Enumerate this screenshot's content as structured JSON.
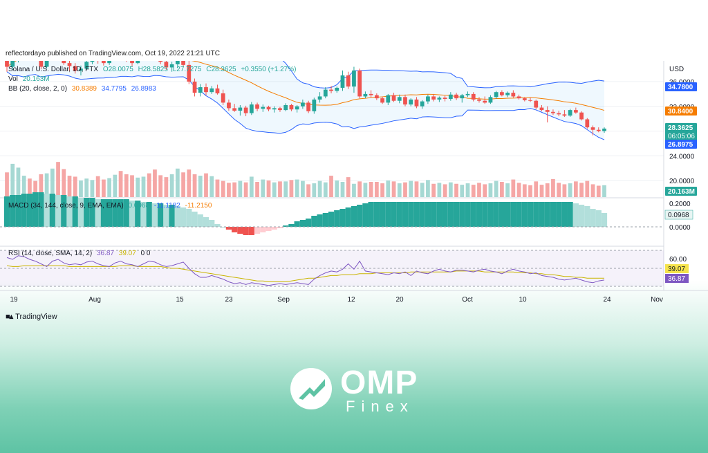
{
  "credit": "reflectordayo published on TradingView.com, Oct 19, 2022 21:21 UTC",
  "header": {
    "symbol": "Solana / U.S. Dollar, 1D, FTX",
    "o": "O28.0075",
    "h": "H28.5825",
    "l": "L27.7275",
    "c": "C28.3625",
    "change": "+0.3550 (+1.27%)",
    "vol_label": "Vol",
    "vol_value": "20.163M",
    "bb_label": "BB (20, close, 2, 0)",
    "bb_basis": "30.8389",
    "bb_upper": "34.7795",
    "bb_lower": "26.8983",
    "macd_label": "MACD (34, 144, close, 9, EMA, EMA)",
    "macd_hist": "0.0968",
    "macd_line": "-11.1182",
    "macd_signal": "-11.2150",
    "rsi_label": "RSI (14, close, SMA, 14, 2)",
    "rsi_value": "36.87",
    "rsi_ma": "39.07",
    "rsi_extra": "0 0"
  },
  "colors": {
    "up": "#26a69a",
    "down": "#ef5350",
    "vol_up": "#a6d8d3",
    "vol_down": "#f5a6a5",
    "bb_band": "#2962ff",
    "bb_basis": "#f57c00",
    "rsi": "#7e57c2",
    "rsi_ma": "#c9b400"
  },
  "brand": {
    "tv": "TradingView",
    "omp": "OMP",
    "omp_sub": "Finex"
  },
  "chart_data": {
    "type": "candlestick",
    "price_axis": {
      "unit": "USD",
      "ticks": [
        "36.0000",
        "32.0000",
        "28.0000",
        "24.0000",
        "20.0000"
      ],
      "range": [
        18.5,
        37.5
      ]
    },
    "price_badges": [
      {
        "value": "34.7800",
        "color": "#2962ff"
      },
      {
        "value": "30.8400",
        "color": "#f57c00"
      },
      {
        "value": "28.3625",
        "sub": "06:05:06",
        "color": "#26a69a"
      },
      {
        "value": "26.8975",
        "color": "#2962ff"
      },
      {
        "value": "20.163M",
        "color": "#26a69a"
      }
    ],
    "macd_axis": {
      "ticks": [
        "0.2000",
        "0.0000"
      ],
      "badge": "0.0968"
    },
    "rsi_axis": {
      "ticks": [
        "60.00"
      ],
      "badges": [
        {
          "value": "39.07",
          "color": "#f5e34b"
        },
        {
          "value": "36.87",
          "color": "#7e57c2"
        }
      ]
    },
    "time_axis": [
      "19",
      "Aug",
      "15",
      "23",
      "Sep",
      "12",
      "20",
      "Oct",
      "10",
      "24",
      "Nov"
    ],
    "candles": [
      {
        "o": 39.4,
        "h": 40.8,
        "l": 37.6,
        "c": 38.4
      },
      {
        "o": 38.4,
        "h": 40.2,
        "l": 37.9,
        "c": 39.7
      },
      {
        "o": 39.7,
        "h": 41.4,
        "l": 39.1,
        "c": 40.6
      },
      {
        "o": 40.6,
        "h": 42.6,
        "l": 40.0,
        "c": 42.0
      },
      {
        "o": 42.0,
        "h": 42.5,
        "l": 39.6,
        "c": 40.2
      },
      {
        "o": 40.2,
        "h": 41.2,
        "l": 39.4,
        "c": 39.8
      },
      {
        "o": 39.8,
        "h": 40.1,
        "l": 38.0,
        "c": 38.4
      },
      {
        "o": 38.4,
        "h": 40.6,
        "l": 38.1,
        "c": 40.1
      },
      {
        "o": 40.1,
        "h": 41.5,
        "l": 39.5,
        "c": 41.0
      },
      {
        "o": 41.0,
        "h": 42.1,
        "l": 40.2,
        "c": 40.5
      },
      {
        "o": 40.5,
        "h": 40.9,
        "l": 38.7,
        "c": 39.0
      },
      {
        "o": 39.0,
        "h": 39.6,
        "l": 37.8,
        "c": 38.5
      },
      {
        "o": 38.5,
        "h": 39.0,
        "l": 37.3,
        "c": 37.8
      },
      {
        "o": 37.8,
        "h": 38.6,
        "l": 37.0,
        "c": 38.1
      },
      {
        "o": 38.1,
        "h": 39.6,
        "l": 37.9,
        "c": 39.2
      },
      {
        "o": 39.2,
        "h": 40.7,
        "l": 38.8,
        "c": 40.2
      },
      {
        "o": 40.2,
        "h": 40.6,
        "l": 38.9,
        "c": 39.4
      },
      {
        "o": 39.4,
        "h": 39.9,
        "l": 38.6,
        "c": 39.0
      },
      {
        "o": 39.0,
        "h": 40.8,
        "l": 38.7,
        "c": 40.4
      },
      {
        "o": 40.4,
        "h": 41.6,
        "l": 39.9,
        "c": 41.1
      },
      {
        "o": 41.1,
        "h": 41.5,
        "l": 39.8,
        "c": 40.3
      },
      {
        "o": 40.3,
        "h": 40.7,
        "l": 39.2,
        "c": 39.7
      },
      {
        "o": 39.7,
        "h": 40.4,
        "l": 38.5,
        "c": 39.0
      },
      {
        "o": 39.0,
        "h": 40.9,
        "l": 38.8,
        "c": 40.6
      },
      {
        "o": 40.6,
        "h": 41.9,
        "l": 40.2,
        "c": 41.5
      },
      {
        "o": 41.5,
        "h": 42.4,
        "l": 40.8,
        "c": 41.0
      },
      {
        "o": 41.0,
        "h": 41.4,
        "l": 39.6,
        "c": 40.0
      },
      {
        "o": 40.0,
        "h": 40.6,
        "l": 38.8,
        "c": 39.2
      },
      {
        "o": 39.2,
        "h": 39.8,
        "l": 37.9,
        "c": 38.3
      },
      {
        "o": 38.3,
        "h": 39.2,
        "l": 37.6,
        "c": 38.8
      },
      {
        "o": 38.8,
        "h": 39.8,
        "l": 38.2,
        "c": 39.5
      },
      {
        "o": 39.5,
        "h": 40.2,
        "l": 38.4,
        "c": 38.7
      },
      {
        "o": 38.7,
        "h": 39.6,
        "l": 35.6,
        "c": 36.0
      },
      {
        "o": 36.0,
        "h": 36.5,
        "l": 33.6,
        "c": 34.2
      },
      {
        "o": 34.2,
        "h": 35.6,
        "l": 33.6,
        "c": 35.1
      },
      {
        "o": 35.1,
        "h": 35.7,
        "l": 33.8,
        "c": 34.3
      },
      {
        "o": 34.3,
        "h": 35.3,
        "l": 34.0,
        "c": 34.9
      },
      {
        "o": 34.9,
        "h": 35.5,
        "l": 33.9,
        "c": 34.1
      },
      {
        "o": 34.1,
        "h": 34.7,
        "l": 32.2,
        "c": 32.6
      },
      {
        "o": 32.6,
        "h": 33.1,
        "l": 31.3,
        "c": 31.7
      },
      {
        "o": 31.7,
        "h": 32.4,
        "l": 31.1,
        "c": 31.3
      },
      {
        "o": 31.3,
        "h": 32.2,
        "l": 30.5,
        "c": 31.8
      },
      {
        "o": 31.8,
        "h": 32.1,
        "l": 30.4,
        "c": 30.9
      },
      {
        "o": 30.9,
        "h": 32.7,
        "l": 30.6,
        "c": 32.3
      },
      {
        "o": 32.3,
        "h": 32.6,
        "l": 31.2,
        "c": 31.6
      },
      {
        "o": 31.6,
        "h": 32.3,
        "l": 31.1,
        "c": 31.9
      },
      {
        "o": 31.9,
        "h": 32.1,
        "l": 31.2,
        "c": 31.5
      },
      {
        "o": 31.5,
        "h": 32.0,
        "l": 31.0,
        "c": 31.7
      },
      {
        "o": 31.7,
        "h": 31.9,
        "l": 31.1,
        "c": 31.4
      },
      {
        "o": 31.4,
        "h": 32.5,
        "l": 31.2,
        "c": 32.2
      },
      {
        "o": 32.2,
        "h": 32.4,
        "l": 31.2,
        "c": 31.5
      },
      {
        "o": 31.5,
        "h": 32.2,
        "l": 31.0,
        "c": 32.0
      },
      {
        "o": 32.0,
        "h": 33.1,
        "l": 31.6,
        "c": 32.6
      },
      {
        "o": 32.6,
        "h": 32.9,
        "l": 30.9,
        "c": 31.2
      },
      {
        "o": 31.2,
        "h": 33.4,
        "l": 30.8,
        "c": 33.1
      },
      {
        "o": 33.1,
        "h": 34.3,
        "l": 32.6,
        "c": 33.6
      },
      {
        "o": 33.6,
        "h": 35.1,
        "l": 33.3,
        "c": 34.7
      },
      {
        "o": 34.7,
        "h": 35.3,
        "l": 34.1,
        "c": 34.5
      },
      {
        "o": 34.5,
        "h": 35.2,
        "l": 34.2,
        "c": 35.0
      },
      {
        "o": 35.0,
        "h": 37.8,
        "l": 34.5,
        "c": 37.0
      },
      {
        "o": 37.0,
        "h": 37.6,
        "l": 34.8,
        "c": 35.2
      },
      {
        "o": 35.2,
        "h": 38.4,
        "l": 34.2,
        "c": 37.8
      },
      {
        "o": 37.8,
        "h": 38.1,
        "l": 33.3,
        "c": 33.6
      },
      {
        "o": 33.6,
        "h": 34.4,
        "l": 33.3,
        "c": 34.0
      },
      {
        "o": 34.0,
        "h": 34.6,
        "l": 33.4,
        "c": 33.8
      },
      {
        "o": 33.8,
        "h": 34.1,
        "l": 33.0,
        "c": 33.3
      },
      {
        "o": 33.3,
        "h": 33.6,
        "l": 32.4,
        "c": 32.6
      },
      {
        "o": 32.6,
        "h": 34.0,
        "l": 32.2,
        "c": 33.8
      },
      {
        "o": 33.8,
        "h": 34.2,
        "l": 32.7,
        "c": 32.9
      },
      {
        "o": 32.9,
        "h": 33.9,
        "l": 32.5,
        "c": 33.5
      },
      {
        "o": 33.5,
        "h": 33.9,
        "l": 32.0,
        "c": 32.3
      },
      {
        "o": 32.3,
        "h": 33.3,
        "l": 32.0,
        "c": 33.1
      },
      {
        "o": 33.1,
        "h": 33.5,
        "l": 31.7,
        "c": 32.0
      },
      {
        "o": 32.0,
        "h": 33.0,
        "l": 31.6,
        "c": 32.8
      },
      {
        "o": 32.8,
        "h": 33.9,
        "l": 32.4,
        "c": 33.6
      },
      {
        "o": 33.6,
        "h": 34.0,
        "l": 32.8,
        "c": 33.1
      },
      {
        "o": 33.1,
        "h": 33.6,
        "l": 32.7,
        "c": 33.4
      },
      {
        "o": 33.4,
        "h": 33.7,
        "l": 32.8,
        "c": 33.2
      },
      {
        "o": 33.2,
        "h": 34.3,
        "l": 32.9,
        "c": 33.9
      },
      {
        "o": 33.9,
        "h": 34.2,
        "l": 33.0,
        "c": 33.3
      },
      {
        "o": 33.3,
        "h": 34.0,
        "l": 32.6,
        "c": 33.8
      },
      {
        "o": 33.8,
        "h": 34.4,
        "l": 33.5,
        "c": 34.0
      },
      {
        "o": 34.0,
        "h": 34.3,
        "l": 32.8,
        "c": 33.1
      },
      {
        "o": 33.1,
        "h": 33.5,
        "l": 32.6,
        "c": 32.9
      },
      {
        "o": 32.9,
        "h": 33.6,
        "l": 32.4,
        "c": 32.6
      },
      {
        "o": 32.6,
        "h": 33.8,
        "l": 32.4,
        "c": 33.5
      },
      {
        "o": 33.5,
        "h": 34.5,
        "l": 33.2,
        "c": 34.3
      },
      {
        "o": 34.3,
        "h": 34.6,
        "l": 33.6,
        "c": 33.8
      },
      {
        "o": 33.8,
        "h": 34.4,
        "l": 33.5,
        "c": 34.2
      },
      {
        "o": 34.2,
        "h": 34.6,
        "l": 33.4,
        "c": 33.6
      },
      {
        "o": 33.6,
        "h": 33.9,
        "l": 33.1,
        "c": 33.3
      },
      {
        "o": 33.3,
        "h": 33.5,
        "l": 32.8,
        "c": 33.0
      },
      {
        "o": 33.0,
        "h": 33.4,
        "l": 32.7,
        "c": 32.9
      },
      {
        "o": 32.9,
        "h": 33.1,
        "l": 31.5,
        "c": 31.8
      },
      {
        "o": 31.8,
        "h": 32.2,
        "l": 31.2,
        "c": 31.4
      },
      {
        "o": 31.4,
        "h": 32.0,
        "l": 29.4,
        "c": 31.1
      },
      {
        "o": 31.1,
        "h": 31.5,
        "l": 30.6,
        "c": 30.9
      },
      {
        "o": 30.9,
        "h": 31.3,
        "l": 30.4,
        "c": 30.7
      },
      {
        "o": 30.7,
        "h": 31.4,
        "l": 30.3,
        "c": 30.5
      },
      {
        "o": 30.5,
        "h": 31.6,
        "l": 30.3,
        "c": 31.4
      },
      {
        "o": 31.4,
        "h": 31.8,
        "l": 30.8,
        "c": 31.0
      },
      {
        "o": 31.0,
        "h": 31.2,
        "l": 29.7,
        "c": 29.9
      },
      {
        "o": 29.9,
        "h": 30.1,
        "l": 28.4,
        "c": 28.6
      },
      {
        "o": 28.6,
        "h": 28.9,
        "l": 27.3,
        "c": 28.2
      },
      {
        "o": 28.2,
        "h": 28.6,
        "l": 27.8,
        "c": 28.0
      },
      {
        "o": 28.0,
        "h": 28.6,
        "l": 27.7,
        "c": 28.4
      }
    ],
    "volume": [
      52,
      70,
      62,
      45,
      39,
      34,
      48,
      50,
      60,
      74,
      59,
      45,
      43,
      35,
      39,
      36,
      44,
      37,
      40,
      47,
      55,
      48,
      46,
      41,
      43,
      50,
      58,
      46,
      42,
      48,
      60,
      52,
      58,
      48,
      45,
      50,
      44,
      37,
      34,
      30,
      31,
      34,
      31,
      43,
      32,
      37,
      35,
      31,
      33,
      33,
      36,
      37,
      34,
      27,
      29,
      34,
      31,
      45,
      35,
      32,
      42,
      28,
      33,
      30,
      32,
      32,
      29,
      35,
      33,
      29,
      31,
      34,
      33,
      30,
      36,
      28,
      30,
      27,
      31,
      28,
      26,
      29,
      26,
      30,
      27,
      29,
      34,
      32,
      29,
      37,
      30,
      27,
      25,
      33,
      26,
      29,
      38,
      30,
      27,
      29,
      33,
      30,
      34,
      27,
      24,
      25
    ],
    "macd_hist": [
      0.22,
      0.23,
      0.23,
      0.24,
      0.24,
      0.25,
      0.25,
      0.24,
      0.24,
      0.23,
      0.23,
      0.22,
      0.22,
      0.21,
      0.21,
      0.21,
      0.2,
      0.2,
      0.2,
      0.2,
      0.2,
      0.2,
      0.19,
      0.19,
      0.18,
      0.18,
      0.17,
      0.17,
      0.16,
      0.16,
      0.15,
      0.14,
      0.13,
      0.11,
      0.09,
      0.07,
      0.05,
      0.02,
      0.0,
      -0.02,
      -0.04,
      -0.05,
      -0.06,
      -0.06,
      -0.05,
      -0.04,
      -0.03,
      -0.02,
      -0.01,
      0.01,
      0.02,
      0.04,
      0.05,
      0.06,
      0.08,
      0.09,
      0.1,
      0.11,
      0.12,
      0.13,
      0.14,
      0.15,
      0.16,
      0.17,
      0.18,
      0.18,
      0.18,
      0.18,
      0.18,
      0.18,
      0.18,
      0.18,
      0.18,
      0.18,
      0.18,
      0.18,
      0.18,
      0.18,
      0.18,
      0.18,
      0.18,
      0.18,
      0.18,
      0.18,
      0.18,
      0.18,
      0.18,
      0.18,
      0.18,
      0.18,
      0.18,
      0.18,
      0.18,
      0.18,
      0.18,
      0.18,
      0.18,
      0.18,
      0.18,
      0.18,
      0.17,
      0.16,
      0.15,
      0.13,
      0.12,
      0.1
    ],
    "rsi": [
      62,
      60,
      64,
      63,
      60,
      58,
      55,
      52,
      58,
      60,
      56,
      54,
      55,
      54,
      57,
      58,
      55,
      53,
      52,
      56,
      58,
      55,
      54,
      52,
      55,
      58,
      57,
      54,
      52,
      53,
      55,
      57,
      50,
      44,
      40,
      40,
      42,
      40,
      38,
      35,
      33,
      34,
      32,
      34,
      33,
      32,
      31,
      32,
      33,
      32,
      33,
      34,
      33,
      32,
      38,
      42,
      45,
      47,
      46,
      49,
      55,
      49,
      58,
      47,
      46,
      45,
      44,
      43,
      45,
      44,
      46,
      42,
      47,
      45,
      44,
      47,
      49,
      47,
      46,
      48,
      48,
      47,
      46,
      48,
      49,
      47,
      46,
      44,
      47,
      49,
      47,
      46,
      44,
      45,
      42,
      41,
      40,
      38,
      37,
      38,
      39,
      37,
      35,
      34,
      36,
      37
    ],
    "rsi_ma": [
      53,
      52,
      52,
      53,
      53,
      53,
      53,
      53,
      53,
      53,
      53,
      52,
      52,
      52,
      52,
      52,
      52,
      52,
      52,
      52,
      53,
      53,
      53,
      52,
      52,
      52,
      52,
      52,
      51,
      50,
      50,
      49,
      48,
      47,
      46,
      45,
      44,
      43,
      42,
      41,
      40,
      39,
      38,
      37,
      36,
      36,
      35,
      35,
      35,
      35,
      36,
      37,
      38,
      39,
      39,
      40,
      41,
      42,
      42,
      43,
      43,
      43,
      44,
      44,
      44,
      45,
      45,
      45,
      45,
      45,
      45,
      46,
      46,
      46,
      46,
      46,
      46,
      46,
      46,
      47,
      47,
      47,
      47,
      47,
      46,
      46,
      46,
      46,
      46,
      46,
      45,
      45,
      45,
      44,
      44,
      43,
      43,
      42,
      41,
      41,
      40,
      40,
      39,
      39,
      39,
      39
    ]
  }
}
